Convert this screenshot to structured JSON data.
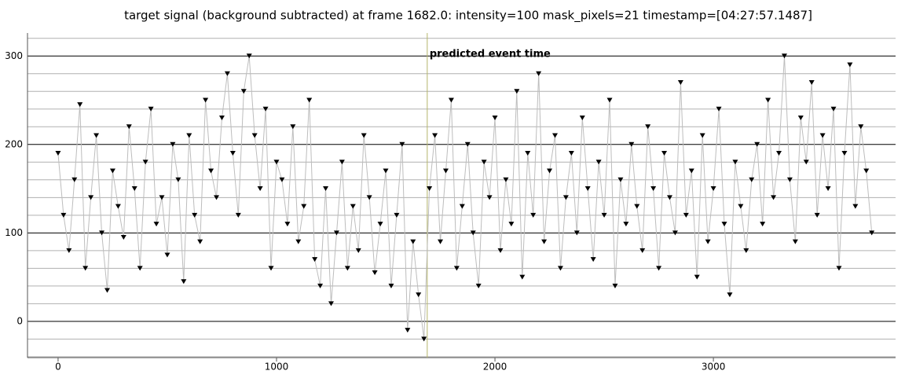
{
  "chart_data": {
    "type": "line",
    "title": "target signal (background subtracted) at frame 1682.0: intensity=100 mask_pixels=21 timestamp=[04:27:57.1487]",
    "x": [
      0,
      25,
      50,
      75,
      100,
      125,
      150,
      175,
      200,
      225,
      250,
      275,
      300,
      325,
      350,
      375,
      400,
      425,
      450,
      475,
      500,
      525,
      550,
      575,
      600,
      625,
      650,
      675,
      700,
      725,
      750,
      775,
      800,
      825,
      850,
      875,
      900,
      925,
      950,
      975,
      1000,
      1025,
      1050,
      1075,
      1100,
      1125,
      1150,
      1175,
      1200,
      1225,
      1250,
      1275,
      1300,
      1325,
      1350,
      1375,
      1400,
      1425,
      1450,
      1475,
      1500,
      1525,
      1550,
      1575,
      1600,
      1625,
      1650,
      1675,
      1700,
      1725,
      1750,
      1775,
      1800,
      1825,
      1850,
      1875,
      1900,
      1925,
      1950,
      1975,
      2000,
      2025,
      2050,
      2075,
      2100,
      2125,
      2150,
      2175,
      2200,
      2225,
      2250,
      2275,
      2300,
      2325,
      2350,
      2375,
      2400,
      2425,
      2450,
      2475,
      2500,
      2525,
      2550,
      2575,
      2600,
      2625,
      2650,
      2675,
      2700,
      2725,
      2750,
      2775,
      2800,
      2825,
      2850,
      2875,
      2900,
      2925,
      2950,
      2975,
      3000,
      3025,
      3050,
      3075,
      3100,
      3125,
      3150,
      3175,
      3200,
      3225,
      3250,
      3275,
      3300,
      3325,
      3350,
      3375,
      3400,
      3425,
      3450,
      3475,
      3500,
      3525,
      3550,
      3575,
      3600,
      3625,
      3650,
      3675,
      3700,
      3725
    ],
    "series": [
      {
        "color": "#000000",
        "values": [
          190,
          120,
          80,
          160,
          245,
          60,
          140,
          210,
          100,
          35,
          170,
          130,
          95,
          220,
          150,
          60,
          180,
          240,
          110,
          140,
          75,
          200,
          160,
          45,
          210,
          120,
          90,
          250,
          170,
          140,
          230,
          280,
          190,
          120,
          260,
          300,
          210,
          150,
          240,
          60,
          180,
          160,
          110,
          220,
          90,
          130,
          250,
          70,
          40,
          150,
          20,
          100,
          180,
          60,
          130,
          80,
          210,
          140,
          55,
          110,
          170,
          40,
          120,
          200,
          -10,
          90,
          30,
          -20,
          150,
          210,
          90,
          170,
          250,
          60,
          130,
          200,
          100,
          40,
          180,
          140,
          230,
          80,
          160,
          110,
          260,
          50,
          190,
          120,
          280,
          90,
          170,
          210,
          60,
          140,
          190,
          100,
          230,
          150,
          70,
          180,
          120,
          250,
          40,
          160,
          110,
          200,
          130,
          80,
          220,
          150,
          60,
          190,
          140,
          100,
          270,
          120,
          170,
          50,
          210,
          90,
          150,
          240,
          110,
          30,
          180,
          130,
          80,
          160,
          200,
          110,
          250,
          140,
          190,
          300,
          160,
          90,
          230,
          180,
          270,
          120,
          210,
          150,
          240,
          60,
          190,
          290,
          130,
          220,
          170,
          100
        ]
      }
    ],
    "line_color": "#bdbdbd",
    "xlim": [
      -140,
      3834
    ],
    "ylim": [
      -41,
      326
    ],
    "xticks": [
      0,
      1000,
      2000,
      3000
    ],
    "yticks": [
      0,
      100,
      200,
      300
    ],
    "y_minor_ticks": [
      -40,
      -20,
      20,
      40,
      60,
      80,
      120,
      140,
      160,
      180,
      220,
      240,
      260,
      280,
      320
    ],
    "grid": true,
    "annotation": {
      "x": 1690,
      "label": "predicted event time",
      "color": "#b5b56a"
    }
  }
}
